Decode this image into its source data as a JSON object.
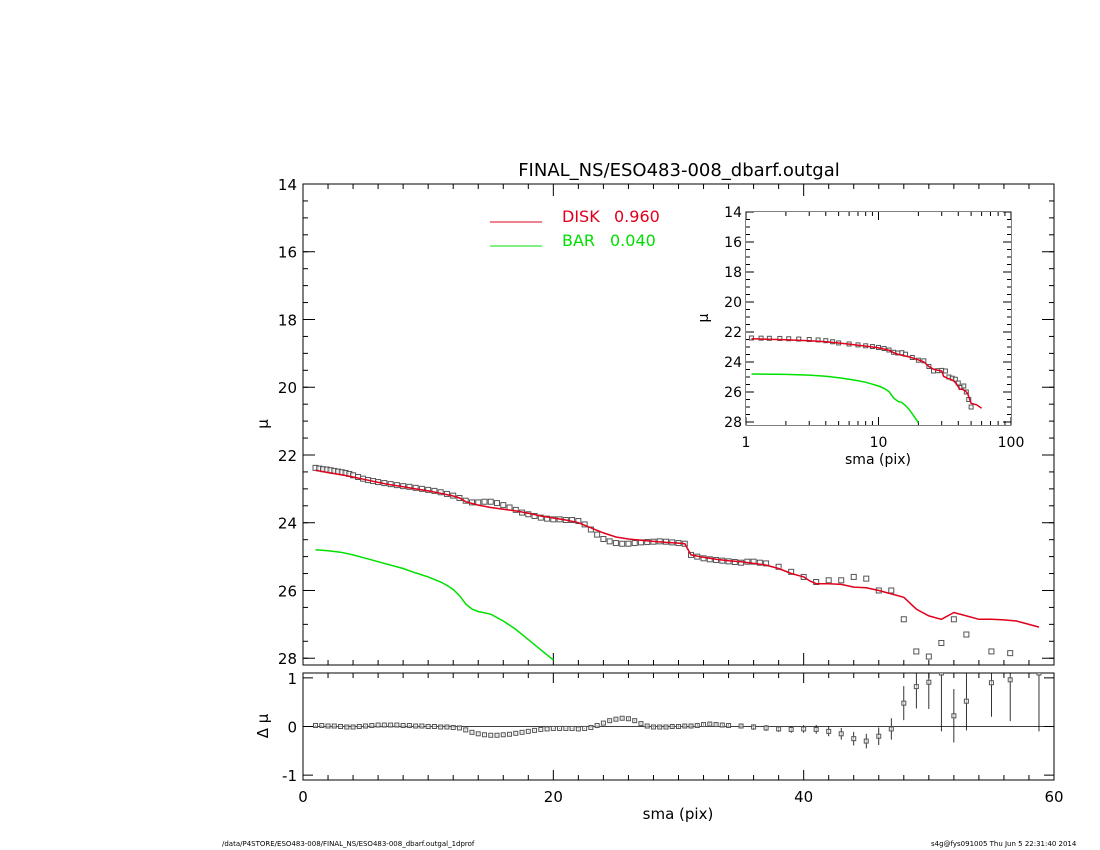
{
  "chart_data": [
    {
      "type": "scatter",
      "panel": "main-profile",
      "title": "FINAL_NS/ESO483-008_dbarf.outgal",
      "xlabel": "",
      "ylabel": "μ",
      "xlim": [
        0,
        60
      ],
      "ylim": [
        28.2,
        14
      ],
      "y_inverted": true,
      "yticks": [
        14,
        16,
        18,
        20,
        22,
        24,
        26,
        28
      ],
      "legend": {
        "position": "top-center",
        "entries": [
          {
            "label": "DISK",
            "value": "0.960",
            "color": "#e0001b"
          },
          {
            "label": "BAR",
            "value": "0.040",
            "color": "#00e000"
          }
        ]
      },
      "series": [
        {
          "name": "data",
          "marker": "open-square",
          "color": "#555555",
          "x": [
            1.0,
            1.3,
            1.6,
            1.9,
            2.2,
            2.5,
            2.8,
            3.1,
            3.4,
            3.7,
            4.0,
            4.4,
            4.8,
            5.2,
            5.6,
            6.0,
            6.5,
            7.0,
            7.5,
            8.0,
            8.5,
            9.0,
            9.5,
            10.0,
            10.5,
            11.0,
            11.5,
            12.0,
            12.5,
            13.0,
            13.5,
            14.0,
            14.5,
            15.0,
            15.5,
            16.0,
            16.5,
            17.0,
            17.5,
            18.0,
            18.5,
            19.0,
            19.5,
            20.0,
            20.5,
            21.0,
            21.5,
            22.0,
            22.5,
            23.0,
            23.5,
            24.0,
            24.5,
            25.0,
            25.5,
            26.0,
            26.5,
            27.0,
            27.5,
            28.0,
            28.5,
            29.0,
            29.5,
            30.0,
            30.5,
            31.0,
            31.5,
            32.0,
            32.5,
            33.0,
            33.5,
            34.0,
            34.5,
            35.0,
            35.5,
            36.0,
            36.5,
            37.0,
            38.0,
            39.0,
            40.0,
            41.0,
            42.0,
            43.0,
            44.0,
            45.0,
            46.0,
            47.0,
            48.0,
            49.0,
            50.0,
            51.0,
            52.0,
            53.0,
            55.0,
            56.5
          ],
          "y": [
            22.38,
            22.4,
            22.42,
            22.43,
            22.45,
            22.47,
            22.49,
            22.51,
            22.53,
            22.56,
            22.6,
            22.65,
            22.7,
            22.74,
            22.77,
            22.8,
            22.83,
            22.86,
            22.89,
            22.92,
            22.94,
            22.97,
            23.0,
            23.03,
            23.06,
            23.1,
            23.15,
            23.2,
            23.27,
            23.35,
            23.4,
            23.4,
            23.38,
            23.38,
            23.42,
            23.48,
            23.55,
            23.62,
            23.7,
            23.75,
            23.8,
            23.85,
            23.88,
            23.9,
            23.9,
            23.92,
            23.92,
            23.95,
            24.05,
            24.2,
            24.35,
            24.48,
            24.55,
            24.6,
            24.62,
            24.62,
            24.6,
            24.58,
            24.57,
            24.56,
            24.55,
            24.56,
            24.58,
            24.6,
            24.62,
            24.95,
            25.0,
            25.05,
            25.08,
            25.1,
            25.12,
            25.14,
            25.16,
            25.18,
            25.15,
            25.15,
            25.18,
            25.2,
            25.3,
            25.45,
            25.6,
            25.75,
            25.7,
            25.7,
            25.6,
            25.65,
            26.0,
            26.0,
            26.85,
            27.8,
            27.95,
            27.55,
            26.85,
            27.3,
            27.8,
            27.85
          ]
        },
        {
          "name": "DISK",
          "style": "line",
          "color": "#e0001b",
          "x": [
            1.0,
            2.0,
            3.0,
            4.0,
            5.0,
            6.0,
            7.0,
            8.0,
            9.0,
            10.0,
            11.0,
            12.0,
            12.5,
            13.0,
            14.0,
            15.0,
            16.0,
            17.0,
            18.0,
            19.0,
            20.0,
            21.0,
            22.0,
            23.0,
            24.0,
            25.0,
            26.0,
            27.0,
            28.0,
            29.0,
            30.0,
            30.5,
            31.0,
            32.0,
            33.0,
            34.0,
            35.0,
            36.0,
            37.0,
            38.0,
            39.0,
            40.0,
            40.5,
            41.0,
            42.0,
            43.0,
            44.0,
            45.0,
            46.0,
            47.0,
            48.0,
            49.0,
            50.0,
            51.0,
            52.0,
            53.0,
            54.0,
            55.0,
            56.0,
            57.0,
            58.0,
            58.8
          ],
          "y": [
            22.45,
            22.52,
            22.58,
            22.65,
            22.73,
            22.81,
            22.88,
            22.94,
            23.0,
            23.06,
            23.13,
            23.21,
            23.27,
            23.38,
            23.48,
            23.55,
            23.6,
            23.65,
            23.72,
            23.8,
            23.86,
            23.92,
            24.0,
            24.15,
            24.3,
            24.42,
            24.48,
            24.52,
            24.55,
            24.58,
            24.6,
            24.62,
            24.95,
            25.02,
            25.08,
            25.12,
            25.15,
            25.2,
            25.25,
            25.35,
            25.5,
            25.6,
            25.72,
            25.8,
            25.8,
            25.82,
            25.9,
            25.92,
            26.0,
            26.1,
            26.2,
            26.55,
            26.75,
            26.85,
            26.65,
            26.75,
            26.85,
            26.85,
            26.87,
            26.9,
            27.0,
            27.08
          ]
        },
        {
          "name": "BAR",
          "style": "line",
          "color": "#00e000",
          "x": [
            1.0,
            2.0,
            3.0,
            4.0,
            5.0,
            6.0,
            7.0,
            8.0,
            9.0,
            10.0,
            11.0,
            11.5,
            12.0,
            12.5,
            13.0,
            13.5,
            14.0,
            15.0,
            16.0,
            17.0,
            18.0,
            19.0,
            20.0
          ],
          "y": [
            24.8,
            24.83,
            24.87,
            24.95,
            25.05,
            25.15,
            25.25,
            25.35,
            25.48,
            25.6,
            25.75,
            25.85,
            25.97,
            26.15,
            26.4,
            26.55,
            26.62,
            26.7,
            26.9,
            27.15,
            27.45,
            27.75,
            28.05
          ]
        }
      ]
    },
    {
      "type": "scatter",
      "panel": "residuals",
      "title": "",
      "xlabel": "sma (pix)",
      "ylabel": "Δ μ",
      "xlim": [
        0,
        60
      ],
      "ylim": [
        -1.1,
        1.1
      ],
      "xticks": [
        0,
        20,
        40,
        60
      ],
      "yticks": [
        -1,
        0,
        1
      ],
      "series": [
        {
          "name": "residual",
          "marker": "open-square",
          "color": "#555555",
          "x": [
            1,
            1.5,
            2,
            2.5,
            3,
            3.5,
            4,
            4.5,
            5,
            5.5,
            6,
            6.5,
            7,
            7.5,
            8,
            8.5,
            9,
            9.5,
            10,
            10.5,
            11,
            11.5,
            12,
            12.5,
            13,
            13.5,
            14,
            14.5,
            15,
            15.5,
            16,
            16.5,
            17,
            17.5,
            18,
            18.5,
            19,
            19.5,
            20,
            20.5,
            21,
            21.5,
            22,
            22.5,
            23,
            23.5,
            24,
            24.5,
            25,
            25.5,
            26,
            26.5,
            27,
            27.5,
            28,
            28.5,
            29,
            29.5,
            30,
            30.5,
            31,
            31.5,
            32,
            32.5,
            33,
            33.5,
            34,
            35,
            36,
            37,
            38,
            39,
            40,
            41,
            42,
            43,
            44,
            45,
            46,
            47,
            48,
            49,
            50,
            51,
            52,
            53,
            55,
            56.5,
            58.8
          ],
          "y": [
            0.02,
            0.02,
            0.01,
            0.01,
            0.0,
            -0.01,
            -0.01,
            0.0,
            0.01,
            0.02,
            0.03,
            0.03,
            0.03,
            0.03,
            0.02,
            0.02,
            0.01,
            0.01,
            0.0,
            0.0,
            -0.01,
            -0.01,
            -0.02,
            -0.03,
            -0.07,
            -0.12,
            -0.15,
            -0.17,
            -0.18,
            -0.18,
            -0.17,
            -0.16,
            -0.14,
            -0.12,
            -0.1,
            -0.08,
            -0.06,
            -0.05,
            -0.04,
            -0.04,
            -0.04,
            -0.04,
            -0.05,
            -0.04,
            -0.02,
            0.02,
            0.07,
            0.12,
            0.15,
            0.17,
            0.16,
            0.12,
            0.06,
            0.01,
            -0.01,
            -0.01,
            -0.01,
            0.0,
            0.0,
            0.01,
            0.01,
            0.02,
            0.04,
            0.05,
            0.04,
            0.03,
            0.02,
            0.01,
            -0.01,
            -0.03,
            -0.05,
            -0.06,
            -0.05,
            -0.06,
            -0.1,
            -0.15,
            -0.25,
            -0.3,
            -0.2,
            -0.05,
            0.48,
            0.82,
            0.91,
            1.1,
            0.22,
            0.52,
            0.9,
            0.96,
            1.1
          ],
          "err": [
            0.01,
            0.01,
            0.01,
            0.01,
            0.01,
            0.01,
            0.01,
            0.01,
            0.01,
            0.01,
            0.01,
            0.01,
            0.01,
            0.01,
            0.01,
            0.01,
            0.01,
            0.01,
            0.01,
            0.01,
            0.01,
            0.01,
            0.01,
            0.01,
            0.01,
            0.01,
            0.01,
            0.01,
            0.01,
            0.01,
            0.01,
            0.01,
            0.01,
            0.01,
            0.01,
            0.01,
            0.01,
            0.01,
            0.01,
            0.01,
            0.01,
            0.01,
            0.01,
            0.01,
            0.01,
            0.01,
            0.01,
            0.02,
            0.02,
            0.02,
            0.02,
            0.02,
            0.02,
            0.02,
            0.02,
            0.02,
            0.02,
            0.03,
            0.03,
            0.03,
            0.03,
            0.03,
            0.04,
            0.04,
            0.04,
            0.04,
            0.05,
            0.05,
            0.06,
            0.06,
            0.06,
            0.07,
            0.08,
            0.09,
            0.1,
            0.12,
            0.14,
            0.15,
            0.18,
            0.22,
            0.35,
            0.45,
            0.55,
            1.2,
            0.55,
            0.6,
            0.7,
            0.85,
            1.2
          ]
        }
      ]
    },
    {
      "type": "scatter",
      "panel": "inset-log",
      "title": "",
      "xlabel": "sma (pix)",
      "ylabel": "μ",
      "xscale": "log",
      "xlim": [
        1,
        100
      ],
      "ylim": [
        28.2,
        14
      ],
      "y_inverted": true,
      "xticks": [
        1,
        10,
        100
      ],
      "yticks": [
        14,
        16,
        18,
        20,
        22,
        24,
        26,
        28
      ],
      "series": [
        {
          "name": "data",
          "marker": "open-square",
          "color": "#555555",
          "x": [
            1.1,
            1.3,
            1.5,
            1.8,
            2.1,
            2.5,
            3.0,
            3.5,
            4.0,
            4.5,
            5.0,
            6.0,
            7.0,
            8.0,
            9.0,
            10,
            11,
            12,
            13,
            14,
            15,
            16,
            18,
            20,
            22,
            24,
            26,
            28,
            30,
            32,
            34,
            36,
            38,
            40,
            42,
            44,
            46,
            48,
            50
          ],
          "y": [
            22.4,
            22.41,
            22.42,
            22.43,
            22.45,
            22.47,
            22.5,
            22.53,
            22.58,
            22.65,
            22.73,
            22.8,
            22.86,
            22.92,
            22.97,
            23.03,
            23.1,
            23.2,
            23.35,
            23.4,
            23.38,
            23.48,
            23.7,
            23.88,
            23.92,
            24.3,
            24.6,
            24.58,
            24.56,
            24.6,
            25.0,
            25.08,
            25.15,
            25.4,
            25.7,
            25.6,
            26.0,
            26.5,
            27.0
          ]
        },
        {
          "name": "DISK",
          "style": "line",
          "color": "#e0001b",
          "x": [
            1.1,
            2,
            3,
            4,
            5,
            6,
            7,
            8,
            9,
            10,
            12,
            13,
            14,
            15,
            16,
            18,
            20,
            22,
            24,
            26,
            28,
            30,
            31,
            33,
            35,
            37,
            39,
            41,
            43,
            45,
            47,
            50,
            55,
            60
          ],
          "y": [
            22.45,
            22.52,
            22.58,
            22.65,
            22.73,
            22.81,
            22.88,
            22.94,
            23.0,
            23.06,
            23.21,
            23.38,
            23.48,
            23.55,
            23.6,
            23.72,
            23.86,
            24.0,
            24.3,
            24.48,
            24.55,
            24.6,
            24.95,
            25.08,
            25.15,
            25.25,
            25.5,
            25.8,
            25.82,
            25.92,
            26.1,
            26.75,
            26.85,
            27.08
          ]
        },
        {
          "name": "BAR",
          "style": "line",
          "color": "#00e000",
          "x": [
            1.1,
            2,
            3,
            4,
            5,
            6,
            7,
            8,
            9,
            10,
            11,
            12,
            13,
            14,
            15,
            16,
            17,
            18,
            19,
            20
          ],
          "y": [
            24.8,
            24.83,
            24.87,
            24.95,
            25.05,
            25.15,
            25.25,
            25.35,
            25.48,
            25.6,
            25.75,
            25.97,
            26.4,
            26.62,
            26.7,
            26.9,
            27.15,
            27.45,
            27.75,
            28.05
          ]
        }
      ]
    }
  ],
  "footer": {
    "path": "/data/P4STORE/ESO483-008/FINAL_NS/ESO483-008_dbarf.outgal_1dprof",
    "stamp": "s4g@fys091005  Thu Jun  5 22:31:40 2014"
  }
}
